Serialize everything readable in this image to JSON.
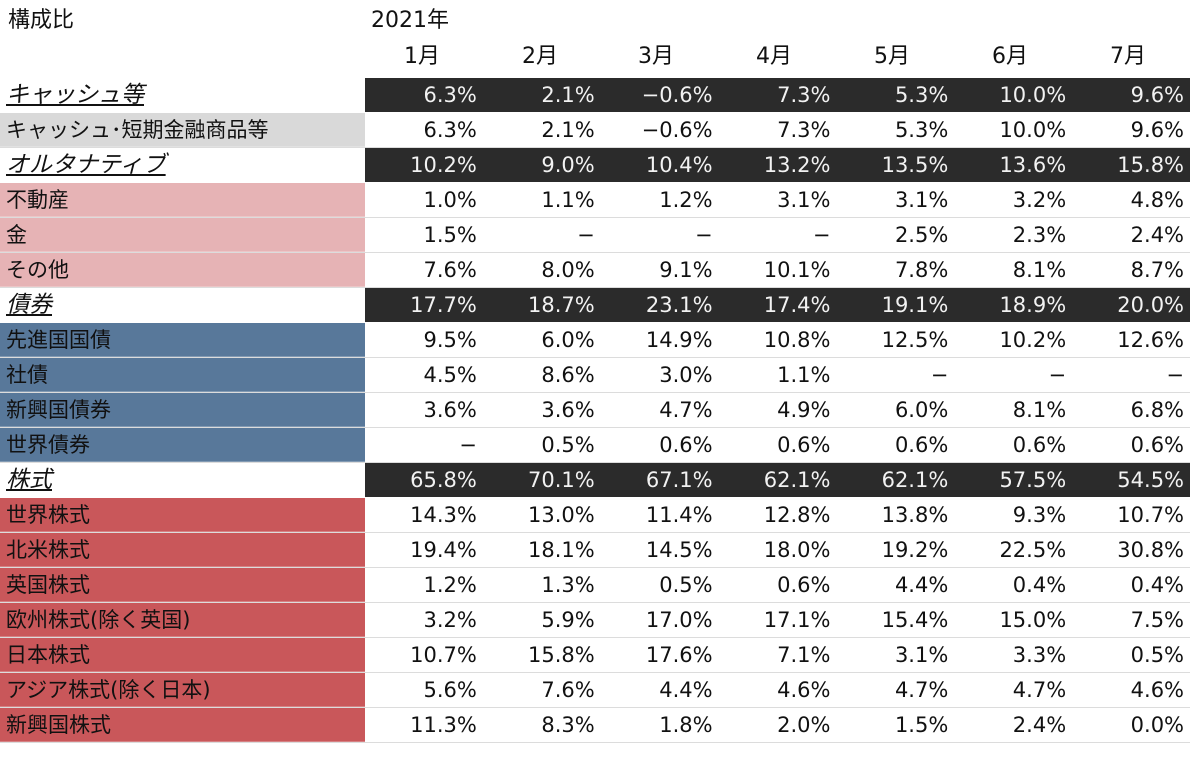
{
  "header": {
    "title": "構成比",
    "year": "2021年",
    "months": [
      "1月",
      "2月",
      "3月",
      "4月",
      "5月",
      "6月",
      "7月"
    ]
  },
  "colors": {
    "summary_bg": "#2b2b2b",
    "cash": "#d9d9d9",
    "alternative": "#e6b3b5",
    "bond": "#58789a",
    "equity": "#c9575a"
  },
  "rows": [
    {
      "type": "summary",
      "label": "キャッシュ等",
      "color": "summary",
      "values": [
        "6.3%",
        "2.1%",
        "−0.6%",
        "7.3%",
        "5.3%",
        "10.0%",
        "9.6%"
      ]
    },
    {
      "type": "sub",
      "label": "キャッシュ･短期金融商品等",
      "color": "cash",
      "values": [
        "6.3%",
        "2.1%",
        "−0.6%",
        "7.3%",
        "5.3%",
        "10.0%",
        "9.6%"
      ]
    },
    {
      "type": "summary",
      "label": "オルタナティブ",
      "color": "summary",
      "values": [
        "10.2%",
        "9.0%",
        "10.4%",
        "13.2%",
        "13.5%",
        "13.6%",
        "15.8%"
      ]
    },
    {
      "type": "sub",
      "label": "不動産",
      "color": "alternative",
      "values": [
        "1.0%",
        "1.1%",
        "1.2%",
        "3.1%",
        "3.1%",
        "3.2%",
        "4.8%"
      ]
    },
    {
      "type": "sub",
      "label": "金",
      "color": "alternative",
      "values": [
        "1.5%",
        "−",
        "−",
        "−",
        "2.5%",
        "2.3%",
        "2.4%"
      ]
    },
    {
      "type": "sub",
      "label": "その他",
      "color": "alternative",
      "values": [
        "7.6%",
        "8.0%",
        "9.1%",
        "10.1%",
        "7.8%",
        "8.1%",
        "8.7%"
      ]
    },
    {
      "type": "summary",
      "label": "債券",
      "color": "summary",
      "values": [
        "17.7%",
        "18.7%",
        "23.1%",
        "17.4%",
        "19.1%",
        "18.9%",
        "20.0%"
      ]
    },
    {
      "type": "sub",
      "label": "先進国国債",
      "color": "bond",
      "values": [
        "9.5%",
        "6.0%",
        "14.9%",
        "10.8%",
        "12.5%",
        "10.2%",
        "12.6%"
      ]
    },
    {
      "type": "sub",
      "label": "社債",
      "color": "bond",
      "values": [
        "4.5%",
        "8.6%",
        "3.0%",
        "1.1%",
        "−",
        "−",
        "−"
      ]
    },
    {
      "type": "sub",
      "label": "新興国債券",
      "color": "bond",
      "values": [
        "3.6%",
        "3.6%",
        "4.7%",
        "4.9%",
        "6.0%",
        "8.1%",
        "6.8%"
      ]
    },
    {
      "type": "sub",
      "label": "世界債券",
      "color": "bond",
      "values": [
        "−",
        "0.5%",
        "0.6%",
        "0.6%",
        "0.6%",
        "0.6%",
        "0.6%"
      ]
    },
    {
      "type": "summary",
      "label": "株式",
      "color": "summary",
      "values": [
        "65.8%",
        "70.1%",
        "67.1%",
        "62.1%",
        "62.1%",
        "57.5%",
        "54.5%"
      ]
    },
    {
      "type": "sub",
      "label": "世界株式",
      "color": "equity",
      "values": [
        "14.3%",
        "13.0%",
        "11.4%",
        "12.8%",
        "13.8%",
        "9.3%",
        "10.7%"
      ]
    },
    {
      "type": "sub",
      "label": "北米株式",
      "color": "equity",
      "values": [
        "19.4%",
        "18.1%",
        "14.5%",
        "18.0%",
        "19.2%",
        "22.5%",
        "30.8%"
      ]
    },
    {
      "type": "sub",
      "label": "英国株式",
      "color": "equity",
      "values": [
        "1.2%",
        "1.3%",
        "0.5%",
        "0.6%",
        "4.4%",
        "0.4%",
        "0.4%"
      ]
    },
    {
      "type": "sub",
      "label": "欧州株式(除く英国)",
      "color": "equity",
      "values": [
        "3.2%",
        "5.9%",
        "17.0%",
        "17.1%",
        "15.4%",
        "15.0%",
        "7.5%"
      ]
    },
    {
      "type": "sub",
      "label": "日本株式",
      "color": "equity",
      "values": [
        "10.7%",
        "15.8%",
        "17.6%",
        "7.1%",
        "3.1%",
        "3.3%",
        "0.5%"
      ]
    },
    {
      "type": "sub",
      "label": "アジア株式(除く日本)",
      "color": "equity",
      "values": [
        "5.6%",
        "7.6%",
        "4.4%",
        "4.6%",
        "4.7%",
        "4.7%",
        "4.6%"
      ]
    },
    {
      "type": "sub",
      "label": "新興国株式",
      "color": "equity",
      "values": [
        "11.3%",
        "8.3%",
        "1.8%",
        "2.0%",
        "1.5%",
        "2.4%",
        "0.0%"
      ]
    }
  ]
}
